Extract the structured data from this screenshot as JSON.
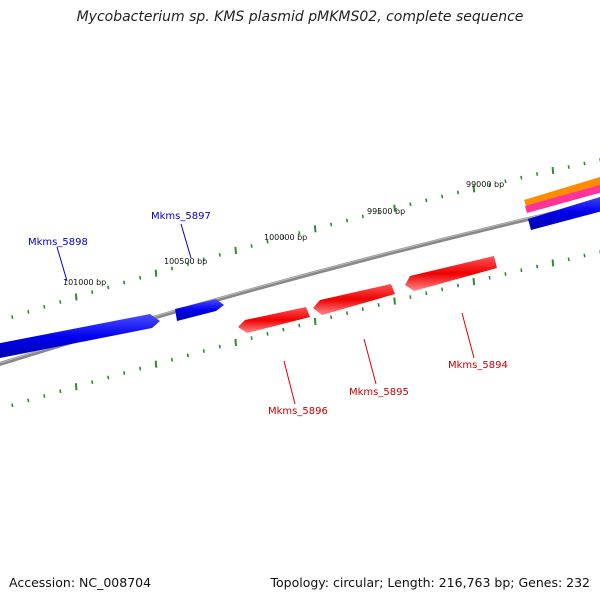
{
  "title": "Mycobacterium sp. KMS plasmid pMKMS02, complete sequence",
  "footer": {
    "accession": "Accession: NC_008704",
    "summary": "Topology: circular; Length: 216,763 bp; Genes: 232"
  },
  "colors": {
    "forward_gene": "#0000ee",
    "reverse_gene": "#ee0000",
    "backbone": "#888888",
    "tick": "#2e8b2e",
    "orange_feature": "#ff8c00",
    "magenta_feature": "#ff3399"
  },
  "tick_labels": [
    "99000 bp",
    "99500 bp",
    "100000 bp",
    "100500 bp",
    "101000 bp"
  ],
  "genes": [
    {
      "name": "Mkms_5898",
      "strand": "forward"
    },
    {
      "name": "Mkms_5897",
      "strand": "forward"
    },
    {
      "name": "Mkms_5896",
      "strand": "reverse"
    },
    {
      "name": "Mkms_5895",
      "strand": "reverse"
    },
    {
      "name": "Mkms_5894",
      "strand": "reverse"
    }
  ]
}
